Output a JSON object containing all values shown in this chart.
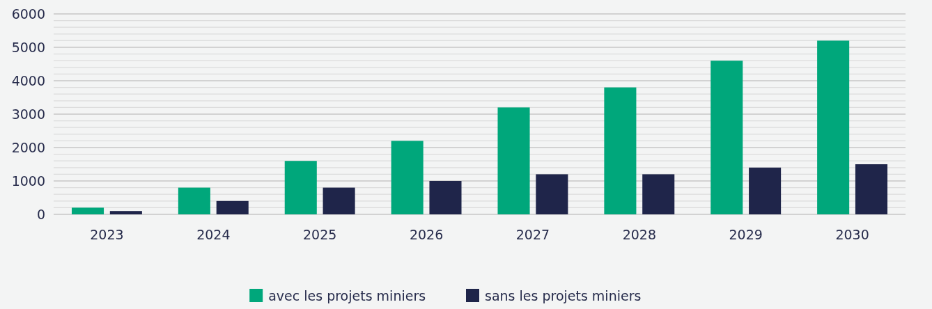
{
  "chart_data": {
    "type": "bar",
    "categories": [
      "2023",
      "2024",
      "2025",
      "2026",
      "2027",
      "2028",
      "2029",
      "2030"
    ],
    "series": [
      {
        "name": "avec les projets miniers",
        "color": "#00a77b",
        "values": [
          200,
          800,
          1600,
          2200,
          3200,
          3800,
          4600,
          5200
        ]
      },
      {
        "name": "sans les projets miniers",
        "color": "#1f254a",
        "values": [
          100,
          400,
          800,
          1000,
          1200,
          1200,
          1400,
          1500
        ]
      }
    ],
    "ylim": [
      0,
      6000
    ],
    "yticks": [
      0,
      {
        "value": 200,
        "label": null
      },
      {
        "value": 400,
        "label": null
      },
      {
        "value": 600,
        "label": null
      },
      {
        "value": 800,
        "label": null
      },
      1000,
      {
        "value": 1200,
        "label": null
      },
      {
        "value": 1400,
        "label": null
      },
      {
        "value": 1600,
        "label": null
      },
      {
        "value": 1800,
        "label": null
      },
      2000,
      {
        "value": 2200,
        "label": null
      },
      {
        "value": 2400,
        "label": null
      },
      {
        "value": 2600,
        "label": null
      },
      {
        "value": 2800,
        "label": null
      },
      3000,
      {
        "value": 3200,
        "label": null
      },
      {
        "value": 3400,
        "label": null
      },
      {
        "value": 3600,
        "label": null
      },
      {
        "value": 3800,
        "label": null
      },
      4000,
      {
        "value": 4200,
        "label": null
      },
      {
        "value": 4400,
        "label": null
      },
      {
        "value": 4600,
        "label": null
      },
      {
        "value": 4800,
        "label": null
      },
      5000,
      {
        "value": 5200,
        "label": null
      },
      {
        "value": 5400,
        "label": null
      },
      {
        "value": 5600,
        "label": null
      },
      {
        "value": 5800,
        "label": null
      },
      6000
    ],
    "grid": true,
    "legend": "bottom"
  }
}
